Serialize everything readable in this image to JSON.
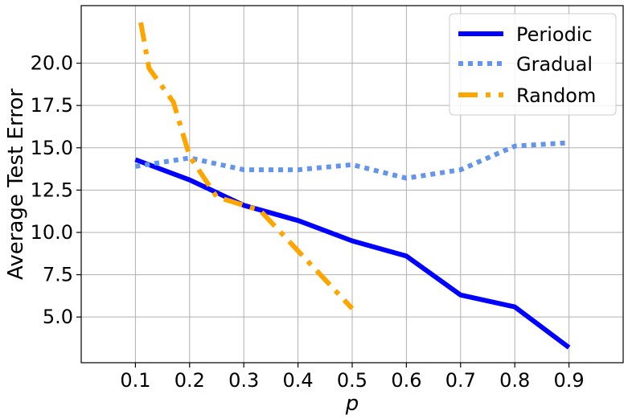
{
  "chart_data": {
    "type": "line",
    "xlabel": "p",
    "ylabel": "Average Test Error",
    "xlim": [
      0.0,
      1.0
    ],
    "ylim": [
      2.3,
      23.4
    ],
    "xticks": [
      0.1,
      0.2,
      0.3,
      0.4,
      0.5,
      0.6,
      0.7,
      0.8,
      0.9
    ],
    "xtick_labels": [
      "0.1",
      "0.2",
      "0.3",
      "0.4",
      "0.5",
      "0.6",
      "0.7",
      "0.8",
      "0.9"
    ],
    "yticks": [
      5.0,
      7.5,
      10.0,
      12.5,
      15.0,
      17.5,
      20.0
    ],
    "ytick_labels": [
      "5.0",
      "7.5",
      "10.0",
      "12.5",
      "15.0",
      "17.5",
      "20.0"
    ],
    "grid": true,
    "legend_position": "top-right",
    "series": [
      {
        "name": "Periodic",
        "color": "#0000ff",
        "style": "solid",
        "x": [
          0.1,
          0.2,
          0.3,
          0.4,
          0.5,
          0.6,
          0.7,
          0.8,
          0.9
        ],
        "y": [
          14.3,
          13.1,
          11.6,
          10.7,
          9.5,
          8.6,
          6.3,
          5.6,
          3.2
        ]
      },
      {
        "name": "Gradual",
        "color": "#6495ed",
        "style": "dotted",
        "x": [
          0.1,
          0.2,
          0.3,
          0.4,
          0.5,
          0.6,
          0.7,
          0.8,
          0.9
        ],
        "y": [
          13.9,
          14.4,
          13.7,
          13.7,
          14.0,
          13.2,
          13.7,
          15.1,
          15.3
        ]
      },
      {
        "name": "Random",
        "color": "#ffa500",
        "style": "dashdot",
        "x": [
          0.11,
          0.125,
          0.17,
          0.2,
          0.25,
          0.33,
          0.5
        ],
        "y": [
          22.4,
          19.7,
          17.7,
          14.5,
          12.1,
          11.3,
          5.5
        ]
      }
    ]
  }
}
